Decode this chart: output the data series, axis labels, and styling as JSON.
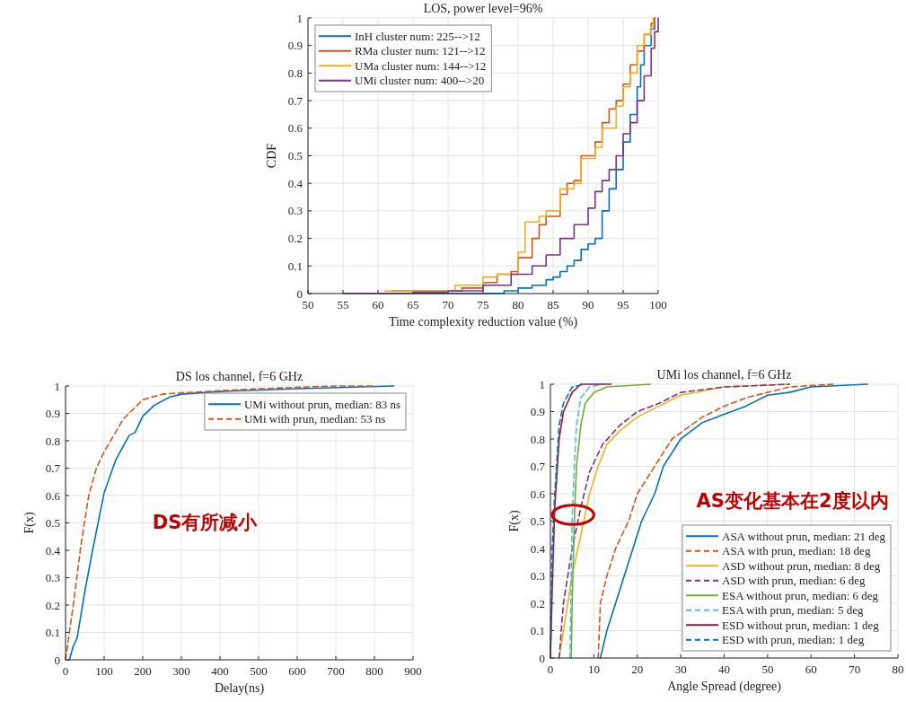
{
  "chart_data": [
    {
      "type": "step",
      "title": "LOS, power level=96%",
      "xlabel": "Time complexity reduction value (%)",
      "ylabel": "CDF",
      "xlim": [
        50,
        100
      ],
      "xticks": [
        50,
        55,
        60,
        65,
        70,
        75,
        80,
        85,
        90,
        95,
        100
      ],
      "ylim": [
        0,
        1
      ],
      "yticks": [
        0,
        0.1,
        0.2,
        0.3,
        0.4,
        0.5,
        0.6,
        0.7,
        0.8,
        0.9,
        1
      ],
      "grid": true,
      "legend": "top left",
      "series": [
        {
          "name": "InH cluster num: 225-->12",
          "color": "#0072bd",
          "x": [
            65,
            78,
            80,
            82,
            84,
            85,
            86,
            87,
            88,
            89,
            90,
            91,
            92,
            93,
            94,
            95,
            96,
            97,
            97.5,
            98,
            99,
            99.5
          ],
          "values": [
            0,
            0.01,
            0.02,
            0.03,
            0.05,
            0.06,
            0.08,
            0.1,
            0.12,
            0.16,
            0.18,
            0.2,
            0.3,
            0.38,
            0.45,
            0.55,
            0.65,
            0.75,
            0.83,
            0.9,
            0.96,
            1
          ]
        },
        {
          "name": "RMa cluster num: 121-->12",
          "color": "#d95319",
          "x": [
            62,
            70,
            72,
            75,
            77,
            79,
            80,
            82,
            83,
            84,
            86,
            87,
            88,
            89,
            90,
            91,
            92,
            93,
            94,
            95,
            96,
            97,
            98,
            99,
            99.5
          ],
          "values": [
            0.01,
            0.01,
            0.02,
            0.04,
            0.07,
            0.08,
            0.13,
            0.2,
            0.25,
            0.28,
            0.36,
            0.4,
            0.41,
            0.5,
            0.5,
            0.55,
            0.62,
            0.67,
            0.7,
            0.76,
            0.83,
            0.88,
            0.94,
            0.98,
            1
          ]
        },
        {
          "name": "UMa cluster num: 144-->12",
          "color": "#edb120",
          "x": [
            61,
            70,
            71,
            75,
            77,
            80,
            81,
            83,
            84,
            86,
            88,
            89,
            91,
            92,
            94,
            95,
            96,
            97,
            98,
            99,
            99.3
          ],
          "values": [
            0.01,
            0.01,
            0.03,
            0.06,
            0.07,
            0.15,
            0.26,
            0.28,
            0.3,
            0.38,
            0.4,
            0.49,
            0.53,
            0.6,
            0.68,
            0.75,
            0.8,
            0.9,
            0.94,
            0.97,
            1
          ]
        },
        {
          "name": "UMi cluster num: 400-->20",
          "color": "#7e2f8e",
          "x": [
            55,
            65,
            70,
            75,
            79,
            82,
            84,
            86,
            88,
            90,
            91,
            92,
            93,
            94,
            95,
            96,
            97,
            98,
            99,
            99.5,
            100
          ],
          "values": [
            0,
            0.005,
            0.01,
            0.03,
            0.07,
            0.1,
            0.14,
            0.2,
            0.25,
            0.31,
            0.37,
            0.41,
            0.45,
            0.5,
            0.58,
            0.62,
            0.7,
            0.79,
            0.89,
            0.95,
            1
          ]
        }
      ]
    },
    {
      "type": "line",
      "title": "DS los channel, f=6 GHz",
      "xlabel": "Delay(ns)",
      "ylabel": "F(x)",
      "xlim": [
        0,
        900
      ],
      "xticks": [
        0,
        100,
        200,
        300,
        400,
        500,
        600,
        700,
        800,
        900
      ],
      "ylim": [
        0,
        1
      ],
      "yticks": [
        0,
        0.1,
        0.2,
        0.3,
        0.4,
        0.5,
        0.6,
        0.7,
        0.8,
        0.9,
        1
      ],
      "grid": true,
      "legend": "top right",
      "annotations": [
        "DS有所减小"
      ],
      "series": [
        {
          "name": "UMi without prun, median: 83 ns",
          "color": "#0072bd",
          "x": [
            10,
            20,
            30,
            50,
            70,
            100,
            130,
            165,
            180,
            200,
            230,
            270,
            300,
            400,
            600,
            850
          ],
          "values": [
            0,
            0.05,
            0.08,
            0.25,
            0.4,
            0.61,
            0.73,
            0.82,
            0.83,
            0.89,
            0.93,
            0.96,
            0.97,
            0.98,
            0.99,
            1
          ]
        },
        {
          "name": "UMi with prun, median: 53 ns",
          "color": "#d95319",
          "line_style": "dashed",
          "x": [
            0,
            5,
            20,
            40,
            60,
            80,
            100,
            150,
            200,
            250,
            300,
            500,
            700,
            800
          ],
          "values": [
            0,
            0.05,
            0.2,
            0.42,
            0.6,
            0.7,
            0.76,
            0.88,
            0.95,
            0.97,
            0.975,
            0.99,
            1,
            1
          ]
        }
      ]
    },
    {
      "type": "line",
      "title": "UMi los channel, f=6 GHz",
      "xlabel": "Angle Spread (degree)",
      "ylabel": "F(x)",
      "xlim": [
        0,
        80
      ],
      "xticks": [
        0,
        10,
        20,
        30,
        40,
        50,
        60,
        70,
        80
      ],
      "ylim": [
        0,
        1
      ],
      "yticks": [
        0,
        0.1,
        0.2,
        0.3,
        0.4,
        0.5,
        0.6,
        0.7,
        0.8,
        0.9,
        1
      ],
      "grid": true,
      "legend": "bottom right",
      "annotations": [
        "AS变化基本在2度以内"
      ],
      "series": [
        {
          "name": "ASA without prun, median: 21 deg",
          "color": "#0072bd",
          "x": [
            11.5,
            13,
            15,
            17,
            19,
            21,
            24,
            26,
            30,
            35,
            40,
            45,
            50,
            55,
            60,
            73
          ],
          "values": [
            0,
            0.1,
            0.2,
            0.3,
            0.4,
            0.5,
            0.6,
            0.7,
            0.8,
            0.86,
            0.89,
            0.92,
            0.96,
            0.97,
            0.99,
            1
          ]
        },
        {
          "name": "ASA with prun, median: 18 deg",
          "color": "#d95319",
          "line_style": "dashed",
          "x": [
            11,
            11.5,
            13,
            15,
            18,
            20,
            24,
            28,
            35,
            40,
            45,
            55,
            65
          ],
          "values": [
            0,
            0.2,
            0.3,
            0.4,
            0.5,
            0.6,
            0.7,
            0.8,
            0.88,
            0.92,
            0.95,
            0.99,
            1
          ]
        },
        {
          "name": "ASD without prun, median: 8 deg",
          "color": "#edb120",
          "x": [
            2,
            4,
            5,
            7,
            9,
            11,
            13,
            16,
            20,
            25,
            30,
            40,
            55
          ],
          "values": [
            0,
            0.2,
            0.3,
            0.45,
            0.6,
            0.7,
            0.78,
            0.83,
            0.88,
            0.92,
            0.96,
            0.99,
            1
          ]
        },
        {
          "name": "ASD with prun, median: 6 deg",
          "color": "#7e2f8e",
          "line_style": "dashed",
          "x": [
            2,
            3,
            5,
            7,
            9,
            12,
            16,
            20,
            25,
            30,
            40,
            55
          ],
          "values": [
            0,
            0.2,
            0.4,
            0.55,
            0.68,
            0.78,
            0.85,
            0.9,
            0.93,
            0.97,
            0.99,
            1
          ]
        },
        {
          "name": "ESA without prun, median: 6 deg",
          "color": "#77ac30",
          "x": [
            4.8,
            5,
            5.5,
            6,
            7,
            8,
            10,
            13,
            23
          ],
          "values": [
            0,
            0.2,
            0.5,
            0.7,
            0.85,
            0.93,
            0.97,
            0.99,
            1
          ]
        },
        {
          "name": "ESA with prun, median: 5 deg",
          "color": "#4dbeee",
          "line_style": "dashed",
          "x": [
            4.5,
            4.8,
            5,
            5.5,
            6,
            7,
            9,
            12
          ],
          "values": [
            0,
            0.3,
            0.5,
            0.7,
            0.85,
            0.95,
            0.99,
            1
          ]
        },
        {
          "name": "ESD without prun, median: 1 deg",
          "color": "#a2142f",
          "x": [
            0,
            0.5,
            1,
            2,
            3,
            5,
            7,
            14
          ],
          "values": [
            0,
            0.3,
            0.55,
            0.8,
            0.9,
            0.97,
            1,
            1
          ]
        },
        {
          "name": "ESD with prun, median: 1 deg",
          "color": "#0072bd",
          "line_style": "dashed",
          "x": [
            0,
            0.4,
            1,
            2,
            3,
            5,
            8
          ],
          "values": [
            0,
            0.4,
            0.6,
            0.85,
            0.93,
            0.99,
            1
          ]
        }
      ]
    }
  ]
}
